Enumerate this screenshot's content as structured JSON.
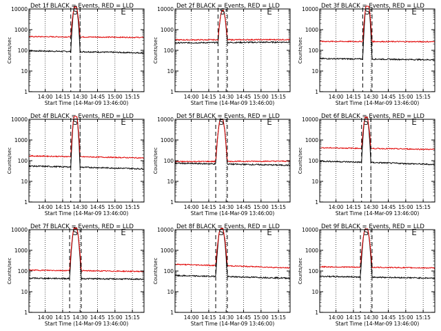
{
  "title_suffix": "BLACK = Events, RED = LLD",
  "ylabel": "Counts/sec",
  "xlabel": "Start Time (14-Mar-09 13:46:00)",
  "xticks": [
    "14:00",
    "14:15",
    "14:30",
    "14:45",
    "15:00",
    "15:15"
  ],
  "yticks": [
    "1",
    "10",
    "100",
    "1000",
    "10000"
  ],
  "colors": {
    "events": "#000000",
    "lld": "#e00000",
    "axis": "#000000"
  },
  "chart_data": [
    {
      "title": "Det 1f",
      "type": "line",
      "xlim": [
        "13:46",
        "15:25"
      ],
      "ylim": [
        1,
        10000
      ],
      "yscale": "log",
      "marker_labels": [
        "S",
        "E"
      ],
      "series": [
        {
          "name": "BLACK = Events",
          "baseline": 95,
          "peak_time": "14:26",
          "peak": 9500,
          "flare_start": "14:22",
          "flare_end": "14:30",
          "end_level": 75
        },
        {
          "name": "RED = LLD",
          "baseline": 460,
          "peak_time": "14:26",
          "peak": 9000,
          "flare_start": "14:22",
          "flare_end": "14:30",
          "end_level": 420
        }
      ]
    },
    {
      "title": "Det 2f",
      "type": "line",
      "xlim": [
        "13:46",
        "15:25"
      ],
      "ylim": [
        1,
        10000
      ],
      "yscale": "log",
      "marker_labels": [
        "S",
        "E"
      ],
      "series": [
        {
          "name": "BLACK = Events",
          "baseline": 230,
          "peak_time": "14:27",
          "peak": 6000,
          "flare_start": "14:23",
          "flare_end": "14:31",
          "end_level": 250
        },
        {
          "name": "RED = LLD",
          "baseline": 320,
          "peak_time": "14:27",
          "peak": 6000,
          "flare_start": "14:23",
          "flare_end": "14:31",
          "end_level": 330
        }
      ]
    },
    {
      "title": "Det 3f",
      "type": "line",
      "xlim": [
        "13:46",
        "15:25"
      ],
      "ylim": [
        1,
        10000
      ],
      "yscale": "log",
      "marker_labels": [
        "S",
        "E"
      ],
      "series": [
        {
          "name": "BLACK = Events",
          "baseline": 40,
          "peak_time": "14:27",
          "peak": 12000,
          "flare_start": "14:23",
          "flare_end": "14:31",
          "end_level": 35
        },
        {
          "name": "RED = LLD",
          "baseline": 270,
          "peak_time": "14:27",
          "peak": 12000,
          "flare_start": "14:23",
          "flare_end": "14:31",
          "end_level": 260
        }
      ]
    },
    {
      "title": "Det 4f",
      "type": "line",
      "xlim": [
        "13:46",
        "15:25"
      ],
      "ylim": [
        1,
        10000
      ],
      "yscale": "log",
      "marker_labels": [
        "S",
        "E"
      ],
      "series": [
        {
          "name": "BLACK = Events",
          "baseline": 55,
          "peak_time": "14:26",
          "peak": 12000,
          "flare_start": "14:22",
          "flare_end": "14:30",
          "end_level": 40
        },
        {
          "name": "RED = LLD",
          "baseline": 170,
          "peak_time": "14:26",
          "peak": 12000,
          "flare_start": "14:22",
          "flare_end": "14:30",
          "end_level": 135
        }
      ]
    },
    {
      "title": "Det 5f",
      "type": "line",
      "xlim": [
        "13:46",
        "15:25"
      ],
      "ylim": [
        1,
        10000
      ],
      "yscale": "log",
      "marker_labels": [
        "S",
        "E"
      ],
      "series": [
        {
          "name": "BLACK = Events",
          "baseline": 75,
          "peak_time": "14:26",
          "peak": 7000,
          "flare_start": "14:21",
          "flare_end": "14:31",
          "end_level": 60
        },
        {
          "name": "RED = LLD",
          "baseline": 90,
          "peak_time": "14:26",
          "peak": 7000,
          "flare_start": "14:21",
          "flare_end": "14:31",
          "end_level": 95
        }
      ]
    },
    {
      "title": "Det 6f",
      "type": "line",
      "xlim": [
        "13:46",
        "15:25"
      ],
      "ylim": [
        1,
        10000
      ],
      "yscale": "log",
      "marker_labels": [
        "S",
        "E"
      ],
      "series": [
        {
          "name": "BLACK = Events",
          "baseline": 95,
          "peak_time": "14:26",
          "peak": 9000,
          "flare_start": "14:22",
          "flare_end": "14:30",
          "end_level": 65
        },
        {
          "name": "RED = LLD",
          "baseline": 420,
          "peak_time": "14:26",
          "peak": 9000,
          "flare_start": "14:22",
          "flare_end": "14:30",
          "end_level": 350
        }
      ]
    },
    {
      "title": "Det 7f",
      "type": "line",
      "xlim": [
        "13:46",
        "15:25"
      ],
      "ylim": [
        1,
        10000
      ],
      "yscale": "log",
      "marker_labels": [
        "S",
        "E"
      ],
      "series": [
        {
          "name": "BLACK = Events",
          "baseline": 45,
          "peak_time": "14:26",
          "peak": 8500,
          "flare_start": "14:21",
          "flare_end": "14:31",
          "end_level": 40
        },
        {
          "name": "RED = LLD",
          "baseline": 110,
          "peak_time": "14:26",
          "peak": 8500,
          "flare_start": "14:21",
          "flare_end": "14:31",
          "end_level": 95
        }
      ]
    },
    {
      "title": "Det 8f",
      "type": "line",
      "xlim": [
        "13:46",
        "15:25"
      ],
      "ylim": [
        1,
        10000
      ],
      "yscale": "log",
      "marker_labels": [
        "S",
        "E"
      ],
      "series": [
        {
          "name": "BLACK = Events",
          "baseline": 60,
          "peak_time": "14:26",
          "peak": 8000,
          "flare_start": "14:21",
          "flare_end": "14:31",
          "end_level": 45
        },
        {
          "name": "RED = LLD",
          "baseline": 210,
          "peak_time": "14:26",
          "peak": 8000,
          "flare_start": "14:21",
          "flare_end": "14:31",
          "end_level": 140
        }
      ]
    },
    {
      "title": "Det 9f",
      "type": "line",
      "xlim": [
        "13:46",
        "15:25"
      ],
      "ylim": [
        1,
        10000
      ],
      "yscale": "log",
      "marker_labels": [
        "S",
        "E"
      ],
      "series": [
        {
          "name": "BLACK = Events",
          "baseline": 55,
          "peak_time": "14:26",
          "peak": 7500,
          "flare_start": "14:21",
          "flare_end": "14:31",
          "end_level": 45
        },
        {
          "name": "RED = LLD",
          "baseline": 160,
          "peak_time": "14:26",
          "peak": 7500,
          "flare_start": "14:21",
          "flare_end": "14:31",
          "end_level": 140
        }
      ]
    }
  ]
}
